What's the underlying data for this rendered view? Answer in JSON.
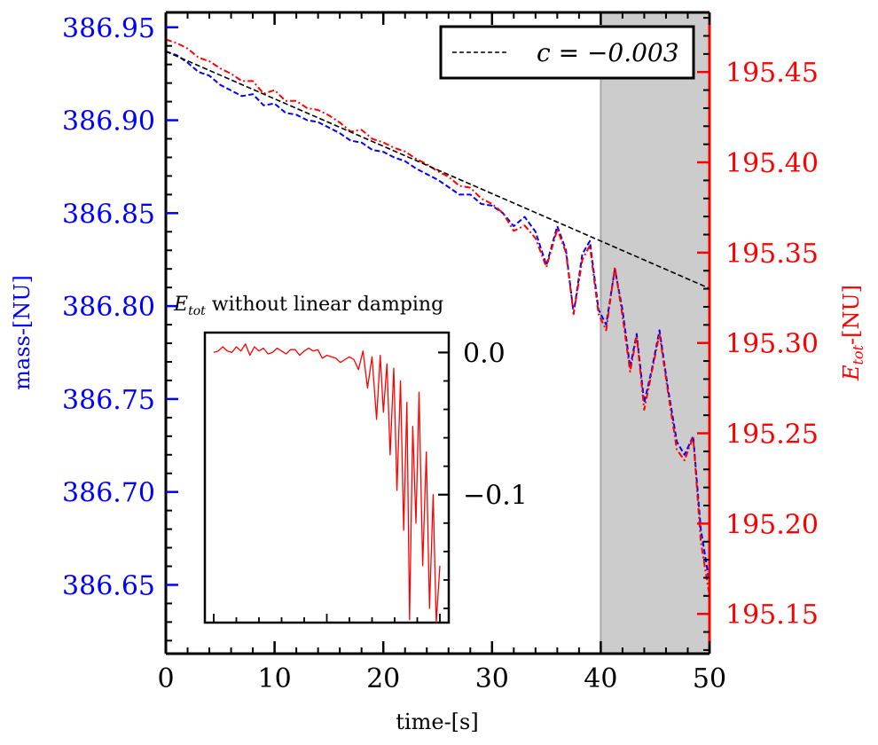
{
  "chart_data": {
    "type": "line",
    "xlabel": "time-[s]",
    "ylabel_left": "mass-[NU]",
    "ylabel_right": "E_tot-[NU]",
    "ylabel_right_main": "E",
    "ylabel_right_sub": "tot",
    "ylabel_right_suffix": "-[NU]",
    "xlim": [
      0,
      50
    ],
    "ylim_left": [
      386.613,
      386.958
    ],
    "ylim_right": [
      195.128,
      195.483
    ],
    "xticks": [
      "0",
      "10",
      "20",
      "30",
      "40",
      "50"
    ],
    "xticks_values": [
      0,
      10,
      20,
      30,
      40,
      50
    ],
    "yticks_left": [
      "386.65",
      "386.70",
      "386.75",
      "386.80",
      "386.85",
      "386.90",
      "386.95"
    ],
    "yticks_left_values": [
      386.65,
      386.7,
      386.75,
      386.8,
      386.85,
      386.9,
      386.95
    ],
    "yticks_right": [
      "195.15",
      "195.20",
      "195.25",
      "195.30",
      "195.35",
      "195.40",
      "195.45"
    ],
    "yticks_right_values": [
      195.15,
      195.2,
      195.25,
      195.3,
      195.35,
      195.4,
      195.45
    ],
    "shaded_region": {
      "x": [
        40,
        50
      ]
    },
    "legend": {
      "placement": "top-right",
      "entries": [
        "c = −0.003"
      ],
      "label_main": "c = −0.003"
    },
    "series": [
      {
        "name": "mass",
        "axis": "left",
        "color": "#0000ff",
        "style": "dashed",
        "x": [
          0,
          1,
          2,
          3,
          4,
          5,
          6,
          7,
          8,
          9,
          10,
          11,
          12,
          13,
          14,
          15,
          16,
          17,
          18,
          19,
          20,
          21,
          22,
          23,
          24,
          25,
          26,
          27,
          28,
          29,
          30,
          31,
          32,
          33,
          34,
          35,
          36,
          36.8,
          37.5,
          38.3,
          39,
          39.8,
          40.5,
          41.3,
          42,
          42.7,
          43.3,
          44,
          44.7,
          45.4,
          46.2,
          47,
          47.7,
          48.5,
          49.2,
          50
        ],
        "y": [
          386.937,
          386.935,
          386.931,
          386.926,
          386.924,
          386.919,
          386.916,
          386.913,
          386.914,
          386.908,
          386.909,
          386.904,
          386.903,
          386.9,
          386.899,
          386.896,
          386.893,
          386.889,
          386.888,
          386.884,
          386.883,
          386.88,
          386.878,
          386.874,
          386.871,
          386.868,
          386.864,
          386.86,
          386.86,
          386.855,
          386.854,
          386.85,
          386.843,
          386.848,
          386.84,
          386.822,
          386.843,
          386.83,
          386.796,
          386.828,
          386.835,
          386.798,
          386.79,
          386.82,
          386.798,
          386.767,
          386.785,
          386.748,
          386.766,
          386.787,
          386.755,
          386.727,
          386.72,
          386.73,
          386.68,
          386.651
        ]
      },
      {
        "name": "E_tot",
        "axis": "right",
        "color": "#ff0000",
        "style": "dashdot",
        "x": [
          0,
          1,
          2,
          3,
          4,
          5,
          6,
          7,
          8,
          9,
          10,
          11,
          12,
          13,
          14,
          15,
          16,
          17,
          18,
          19,
          20,
          21,
          22,
          23,
          24,
          25,
          26,
          27,
          28,
          29,
          30,
          31,
          32,
          33,
          34,
          35,
          36,
          36.8,
          37.5,
          38.3,
          39,
          39.8,
          40.5,
          41.3,
          42,
          42.7,
          43.3,
          44,
          44.7,
          45.4,
          46.2,
          47,
          47.7,
          48.5,
          49.2,
          50
        ],
        "y": [
          195.468,
          195.466,
          195.463,
          195.458,
          195.456,
          195.452,
          195.449,
          195.445,
          195.445,
          195.438,
          195.44,
          195.434,
          195.434,
          195.43,
          195.429,
          195.426,
          195.422,
          195.417,
          195.418,
          195.413,
          195.411,
          195.408,
          195.406,
          195.402,
          195.399,
          195.395,
          195.392,
          195.387,
          195.386,
          195.38,
          195.377,
          195.372,
          195.362,
          195.365,
          195.358,
          195.342,
          195.363,
          195.35,
          195.316,
          195.346,
          195.354,
          195.316,
          195.307,
          195.342,
          195.315,
          195.284,
          195.304,
          195.263,
          195.284,
          195.305,
          195.272,
          195.241,
          195.235,
          195.248,
          195.19,
          195.16
        ]
      },
      {
        "name": "c = −0.003",
        "axis": "left",
        "color": "#000000",
        "style": "dashed",
        "x": [
          0,
          50
        ],
        "y": [
          386.937,
          386.8095
        ]
      }
    ],
    "inset": {
      "title": "E_tot without linear damping",
      "title_main": "E",
      "title_sub": "tot",
      "title_rest": " without linear damping",
      "yticks": [
        "0.0",
        "−0.1"
      ],
      "yticks_values": [
        0.0,
        -0.1
      ],
      "ylim": [
        -0.19,
        0.014
      ],
      "xlim": [
        0,
        50
      ],
      "series": {
        "color": "#ff0000",
        "x": [
          0,
          1,
          2,
          3,
          4,
          5,
          6,
          7,
          8,
          9,
          10,
          11,
          12,
          13,
          14,
          15,
          16,
          17,
          18,
          19,
          20,
          21,
          22,
          23,
          24,
          25,
          26,
          27,
          28,
          29,
          30,
          31,
          32,
          33,
          34,
          35,
          36,
          36.8,
          37.5,
          38.3,
          39,
          39.8,
          40.5,
          41.3,
          42,
          42.7,
          43.3,
          44,
          44.7,
          45.4,
          46.2,
          47,
          47.7,
          48.5,
          49.2,
          50
        ],
        "y": [
          0.0,
          0.001,
          0.004,
          0.001,
          0.0,
          0.004,
          0.001,
          0.006,
          -0.002,
          0.004,
          0.001,
          0.003,
          -0.001,
          0.0,
          0.003,
          0.001,
          -0.001,
          0.002,
          0.002,
          -0.002,
          0.001,
          0.003,
          0.001,
          0.002,
          -0.004,
          -0.002,
          -0.003,
          -0.004,
          -0.007,
          -0.005,
          -0.003,
          -0.005,
          -0.012,
          0.001,
          -0.025,
          -0.003,
          -0.047,
          -0.002,
          -0.042,
          -0.008,
          -0.072,
          -0.011,
          -0.097,
          -0.02,
          -0.125,
          -0.035,
          -0.188,
          -0.052,
          -0.12,
          -0.028,
          -0.15,
          -0.07,
          -0.18,
          -0.1,
          -0.19,
          -0.15
        ]
      }
    }
  }
}
